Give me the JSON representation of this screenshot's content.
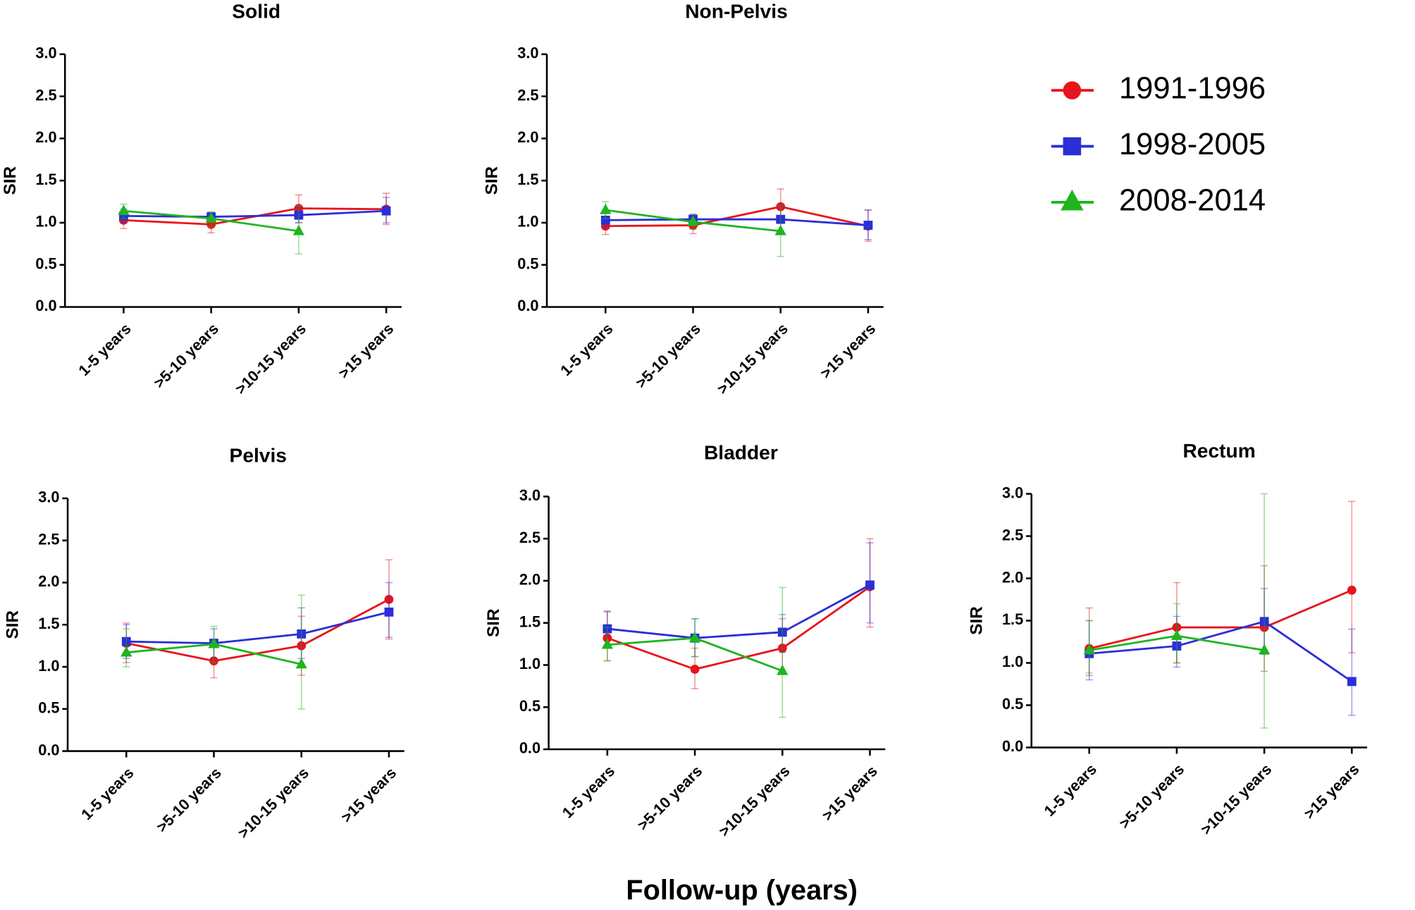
{
  "xlabel": "Follow-up (years)",
  "chart_data": [
    {
      "type": "line",
      "title": "Solid",
      "ylabel": "SIR",
      "categories": [
        "1-5 years",
        ">5-10 years",
        ">10-15 years",
        ">15 years"
      ],
      "ylim": [
        0,
        3
      ],
      "yticks": [
        {
          "value": 0,
          "label": "0.0"
        },
        {
          "value": 0.5,
          "label": "0.5"
        },
        {
          "value": 1,
          "label": "1.0"
        },
        {
          "value": 1.5,
          "label": "1.5"
        },
        {
          "value": 2,
          "label": "2.0"
        },
        {
          "value": 2.5,
          "label": "2.5"
        },
        {
          "value": 3,
          "label": "3.0"
        }
      ],
      "series": [
        {
          "name": "1991-1996",
          "color": "#e8141b",
          "marker": "circle",
          "values": [
            1.03,
            0.98,
            1.17,
            1.16
          ],
          "lower": [
            0.93,
            0.88,
            1.0,
            0.98
          ],
          "upper": [
            1.13,
            1.08,
            1.33,
            1.35
          ]
        },
        {
          "name": "1998-2005",
          "color": "#2a2fd6",
          "marker": "square",
          "values": [
            1.08,
            1.07,
            1.09,
            1.14
          ],
          "lower": [
            1.0,
            1.02,
            1.0,
            1.0
          ],
          "upper": [
            1.16,
            1.12,
            1.18,
            1.3
          ]
        },
        {
          "name": "2008-2014",
          "color": "#1fb51f",
          "marker": "triangle",
          "values": [
            1.14,
            1.05,
            0.9,
            null
          ],
          "lower": [
            1.05,
            0.95,
            0.63,
            null
          ],
          "upper": [
            1.22,
            1.13,
            1.2,
            null
          ]
        }
      ]
    },
    {
      "type": "line",
      "title": "Non-Pelvis",
      "ylabel": "SIR",
      "categories": [
        "1-5 years",
        ">5-10 years",
        ">10-15 years",
        ">15 years"
      ],
      "ylim": [
        0,
        3
      ],
      "yticks": [
        {
          "value": 0,
          "label": "0.0"
        },
        {
          "value": 0.5,
          "label": "0.5"
        },
        {
          "value": 1,
          "label": "1.0"
        },
        {
          "value": 1.5,
          "label": "1.5"
        },
        {
          "value": 2,
          "label": "2.0"
        },
        {
          "value": 2.5,
          "label": "2.5"
        },
        {
          "value": 3,
          "label": "3.0"
        }
      ],
      "series": [
        {
          "name": "1991-1996",
          "color": "#e8141b",
          "marker": "circle",
          "values": [
            0.96,
            0.97,
            1.19,
            0.96
          ],
          "lower": [
            0.86,
            0.87,
            1.0,
            0.78
          ],
          "upper": [
            1.06,
            1.07,
            1.4,
            1.15
          ]
        },
        {
          "name": "1998-2005",
          "color": "#2a2fd6",
          "marker": "square",
          "values": [
            1.03,
            1.04,
            1.04,
            0.97
          ],
          "lower": [
            0.95,
            0.98,
            0.9,
            0.8
          ],
          "upper": [
            1.12,
            1.1,
            1.2,
            1.15
          ]
        },
        {
          "name": "2008-2014",
          "color": "#1fb51f",
          "marker": "triangle",
          "values": [
            1.15,
            1.01,
            0.9,
            null
          ],
          "lower": [
            1.05,
            0.92,
            0.6,
            null
          ],
          "upper": [
            1.25,
            1.1,
            1.2,
            null
          ]
        }
      ]
    },
    {
      "type": "line",
      "title": "Pelvis",
      "ylabel": "SIR",
      "categories": [
        "1-5 years",
        ">5-10 years",
        ">10-15 years",
        ">15 years"
      ],
      "ylim": [
        0,
        3
      ],
      "yticks": [
        {
          "value": 0,
          "label": "0.0"
        },
        {
          "value": 0.5,
          "label": "0.5"
        },
        {
          "value": 1,
          "label": "1.0"
        },
        {
          "value": 1.5,
          "label": "1.5"
        },
        {
          "value": 2,
          "label": "2.0"
        },
        {
          "value": 2.5,
          "label": "2.5"
        },
        {
          "value": 3,
          "label": "3.0"
        }
      ],
      "series": [
        {
          "name": "1991-1996",
          "color": "#e8141b",
          "marker": "circle",
          "values": [
            1.28,
            1.07,
            1.25,
            1.8
          ],
          "lower": [
            1.05,
            0.87,
            0.9,
            1.33
          ],
          "upper": [
            1.52,
            1.28,
            1.6,
            2.27
          ]
        },
        {
          "name": "1998-2005",
          "color": "#2a2fd6",
          "marker": "square",
          "values": [
            1.3,
            1.28,
            1.39,
            1.65
          ],
          "lower": [
            1.1,
            1.1,
            1.1,
            1.35
          ],
          "upper": [
            1.5,
            1.45,
            1.7,
            2.0
          ]
        },
        {
          "name": "2008-2014",
          "color": "#1fb51f",
          "marker": "triangle",
          "values": [
            1.17,
            1.27,
            1.03,
            null
          ],
          "lower": [
            1.0,
            1.05,
            0.5,
            null
          ],
          "upper": [
            1.45,
            1.48,
            1.85,
            null
          ]
        }
      ]
    },
    {
      "type": "line",
      "title": "Bladder",
      "ylabel": "SIR",
      "categories": [
        "1-5 years",
        ">5-10 years",
        ">10-15 years",
        ">15 years"
      ],
      "ylim": [
        0,
        3
      ],
      "yticks": [
        {
          "value": 0,
          "label": "0.0"
        },
        {
          "value": 0.5,
          "label": "0.5"
        },
        {
          "value": 1,
          "label": "1.0"
        },
        {
          "value": 1.5,
          "label": "1.5"
        },
        {
          "value": 2,
          "label": "2.0"
        },
        {
          "value": 2.5,
          "label": "2.5"
        },
        {
          "value": 3,
          "label": "3.0"
        }
      ],
      "series": [
        {
          "name": "1991-1996",
          "color": "#e8141b",
          "marker": "circle",
          "values": [
            1.32,
            0.95,
            1.2,
            1.93
          ],
          "lower": [
            1.05,
            0.72,
            0.9,
            1.45
          ],
          "upper": [
            1.63,
            1.2,
            1.55,
            2.5
          ]
        },
        {
          "name": "1998-2005",
          "color": "#2a2fd6",
          "marker": "square",
          "values": [
            1.43,
            1.32,
            1.39,
            1.95
          ],
          "lower": [
            1.22,
            1.1,
            1.15,
            1.5
          ],
          "upper": [
            1.64,
            1.55,
            1.6,
            2.45
          ]
        },
        {
          "name": "2008-2014",
          "color": "#1fb51f",
          "marker": "triangle",
          "values": [
            1.24,
            1.32,
            0.93,
            null
          ],
          "lower": [
            1.05,
            1.1,
            0.38,
            null
          ],
          "upper": [
            1.45,
            1.55,
            1.92,
            null
          ]
        }
      ]
    },
    {
      "type": "line",
      "title": "Rectum",
      "ylabel": "SIR",
      "categories": [
        "1-5 years",
        ">5-10 years",
        ">10-15 years",
        ">15 years"
      ],
      "ylim": [
        0,
        3
      ],
      "yticks": [
        {
          "value": 0,
          "label": "0.0"
        },
        {
          "value": 0.5,
          "label": "0.5"
        },
        {
          "value": 1,
          "label": "1.0"
        },
        {
          "value": 1.5,
          "label": "1.5"
        },
        {
          "value": 2,
          "label": "2.0"
        },
        {
          "value": 2.5,
          "label": "2.5"
        },
        {
          "value": 3,
          "label": "3.0"
        }
      ],
      "series": [
        {
          "name": "1991-1996",
          "color": "#e8141b",
          "marker": "circle",
          "values": [
            1.17,
            1.42,
            1.42,
            1.86
          ],
          "lower": [
            0.85,
            1.0,
            0.9,
            1.12
          ],
          "upper": [
            1.65,
            1.95,
            2.15,
            2.91
          ]
        },
        {
          "name": "1998-2005",
          "color": "#2a2fd6",
          "marker": "square",
          "values": [
            1.11,
            1.2,
            1.49,
            0.78
          ],
          "lower": [
            0.8,
            0.95,
            1.1,
            0.38
          ],
          "upper": [
            1.5,
            1.55,
            1.88,
            1.4
          ]
        },
        {
          "name": "2008-2014",
          "color": "#1fb51f",
          "marker": "triangle",
          "values": [
            1.15,
            1.32,
            1.15,
            null
          ],
          "lower": [
            0.88,
            1.0,
            0.23,
            null
          ],
          "upper": [
            1.5,
            1.7,
            3.0,
            null
          ]
        }
      ]
    }
  ]
}
